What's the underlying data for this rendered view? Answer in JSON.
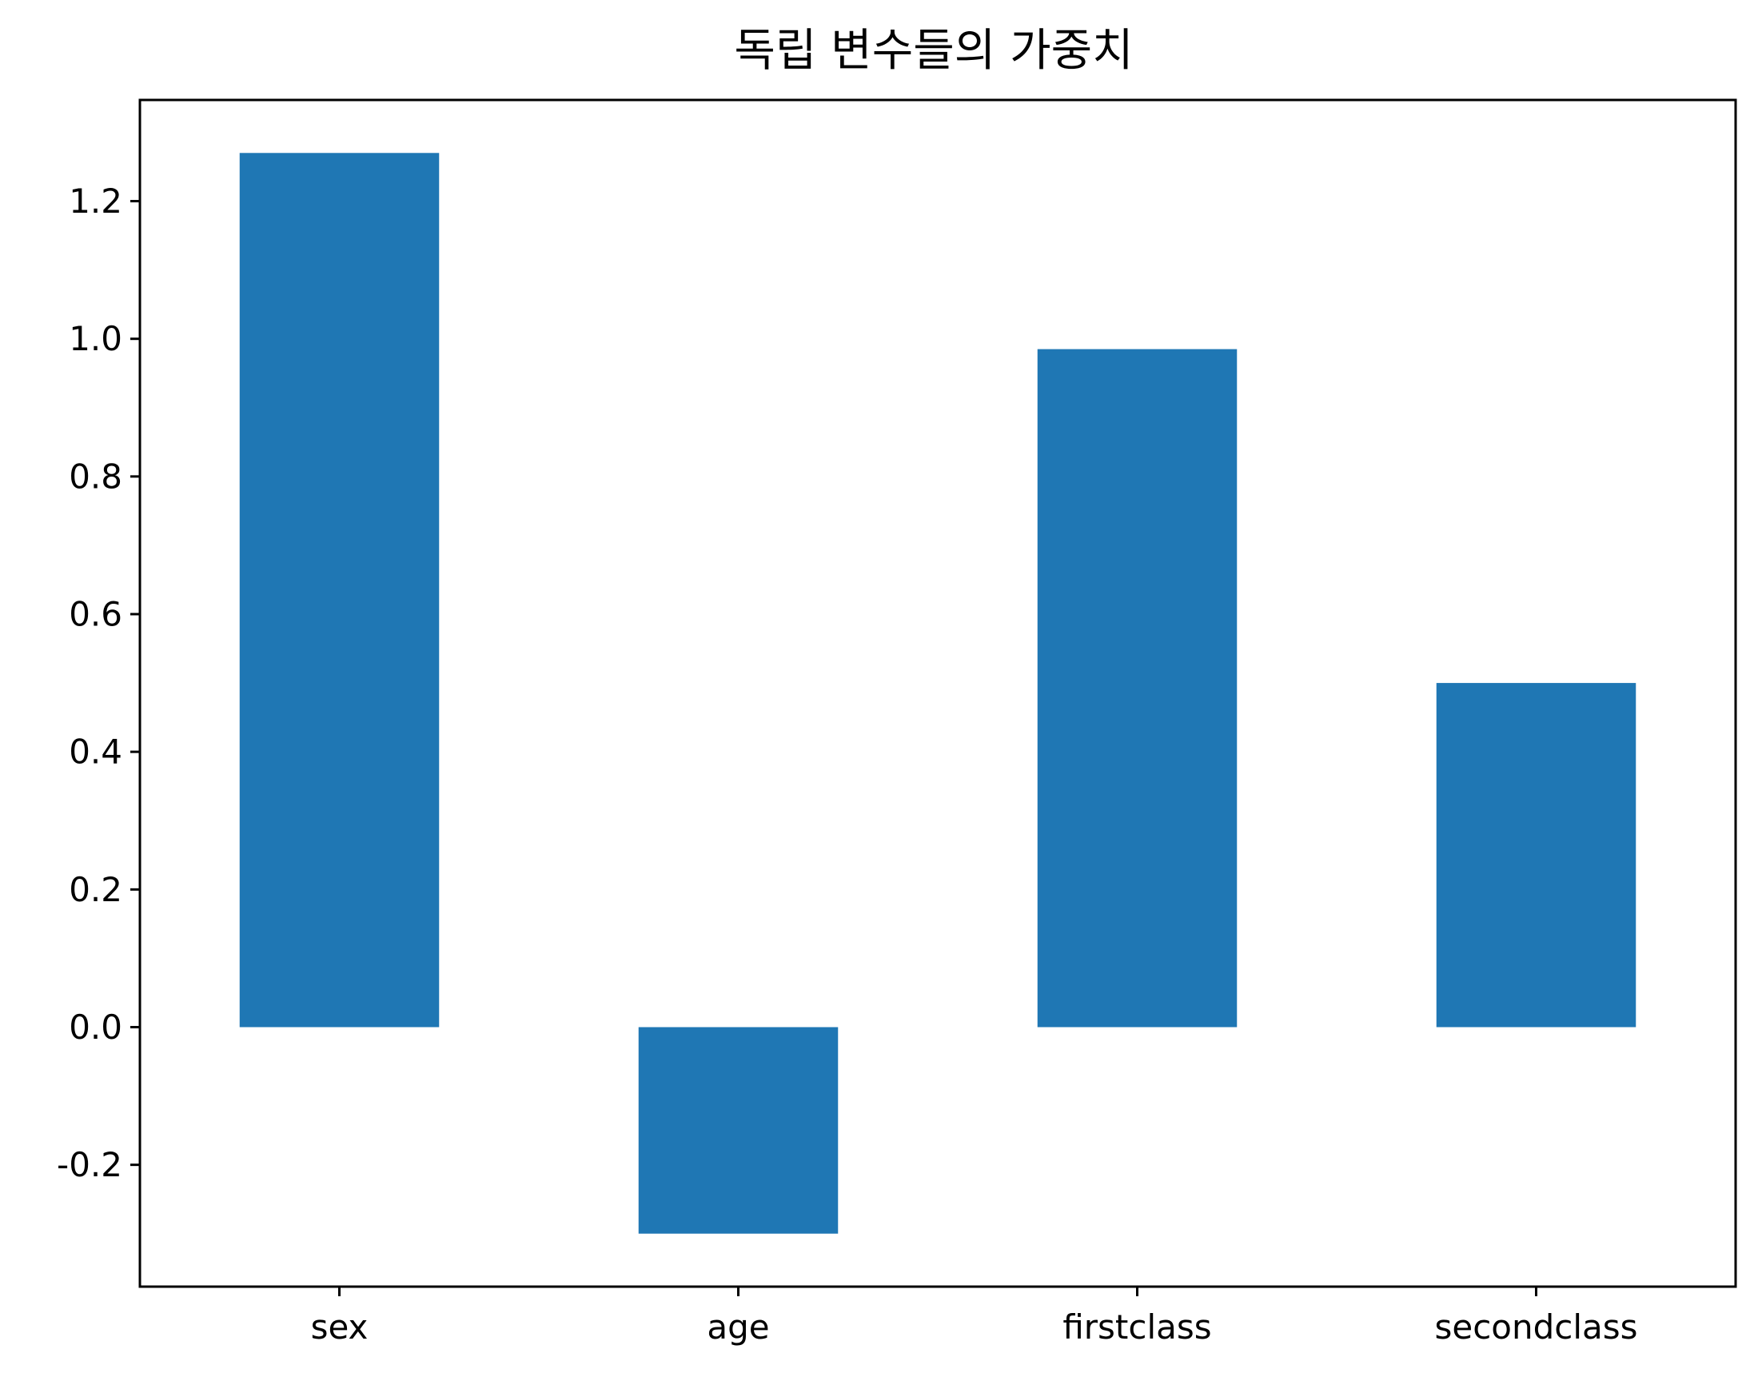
{
  "chart_data": {
    "type": "bar",
    "title": "독립 변수들의 가중치",
    "xlabel": "",
    "ylabel": "",
    "categories": [
      "sex",
      "age",
      "firstclass",
      "secondclass"
    ],
    "values": [
      1.27,
      -0.3,
      0.985,
      0.5
    ],
    "ylim": [
      -0.377,
      1.347
    ],
    "yticks": [
      -0.2,
      0.0,
      0.2,
      0.4,
      0.6,
      0.8,
      1.0,
      1.2
    ],
    "ytick_labels": [
      "-0.2",
      "0.0",
      "0.2",
      "0.4",
      "0.6",
      "0.8",
      "1.0",
      "1.2"
    ],
    "grid": false,
    "legend": false,
    "bar_color": "#1f77b4"
  }
}
